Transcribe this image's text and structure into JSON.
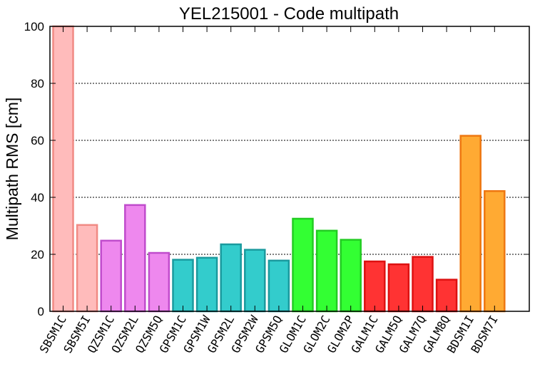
{
  "chart_data": {
    "type": "bar",
    "title": "YEL215001 - Code multipath",
    "ylabel": "Multipath RMS [cm]",
    "xlabel": "",
    "ylim": [
      0,
      100
    ],
    "yticks": [
      0,
      20,
      40,
      60,
      80,
      100
    ],
    "grid": "horizontal dashed",
    "categories": [
      "SBSM1C",
      "SBSM5I",
      "QZSM1C",
      "QZSM2L",
      "QZSM5Q",
      "GPSM1C",
      "GPSM1W",
      "GPSM2L",
      "GPSM2W",
      "GPSM5Q",
      "GLOM1C",
      "GLOM2C",
      "GLOM2P",
      "GALM1C",
      "GALM5Q",
      "GALM7Q",
      "GALM8Q",
      "BDSM1I",
      "BDSM7I"
    ],
    "values": [
      100,
      30.3,
      24.8,
      37.3,
      20.5,
      18.1,
      18.8,
      23.5,
      21.6,
      17.8,
      32.5,
      28.3,
      25.1,
      17.5,
      16.5,
      19.1,
      11.1,
      61.6,
      42.2
    ],
    "groups": [
      {
        "system": "SBS",
        "fill": "#ffbbbb",
        "stroke": "#f08a84"
      },
      {
        "system": "QZS",
        "fill": "#ee88ee",
        "stroke": "#c04ccc"
      },
      {
        "system": "GPS",
        "fill": "#33cccc",
        "stroke": "#1a9a9e"
      },
      {
        "system": "GLO",
        "fill": "#33ff33",
        "stroke": "#22cc22"
      },
      {
        "system": "GAL",
        "fill": "#ff3333",
        "stroke": "#dd1111"
      },
      {
        "system": "BDS",
        "fill": "#ffaa33",
        "stroke": "#ee7711"
      }
    ]
  }
}
